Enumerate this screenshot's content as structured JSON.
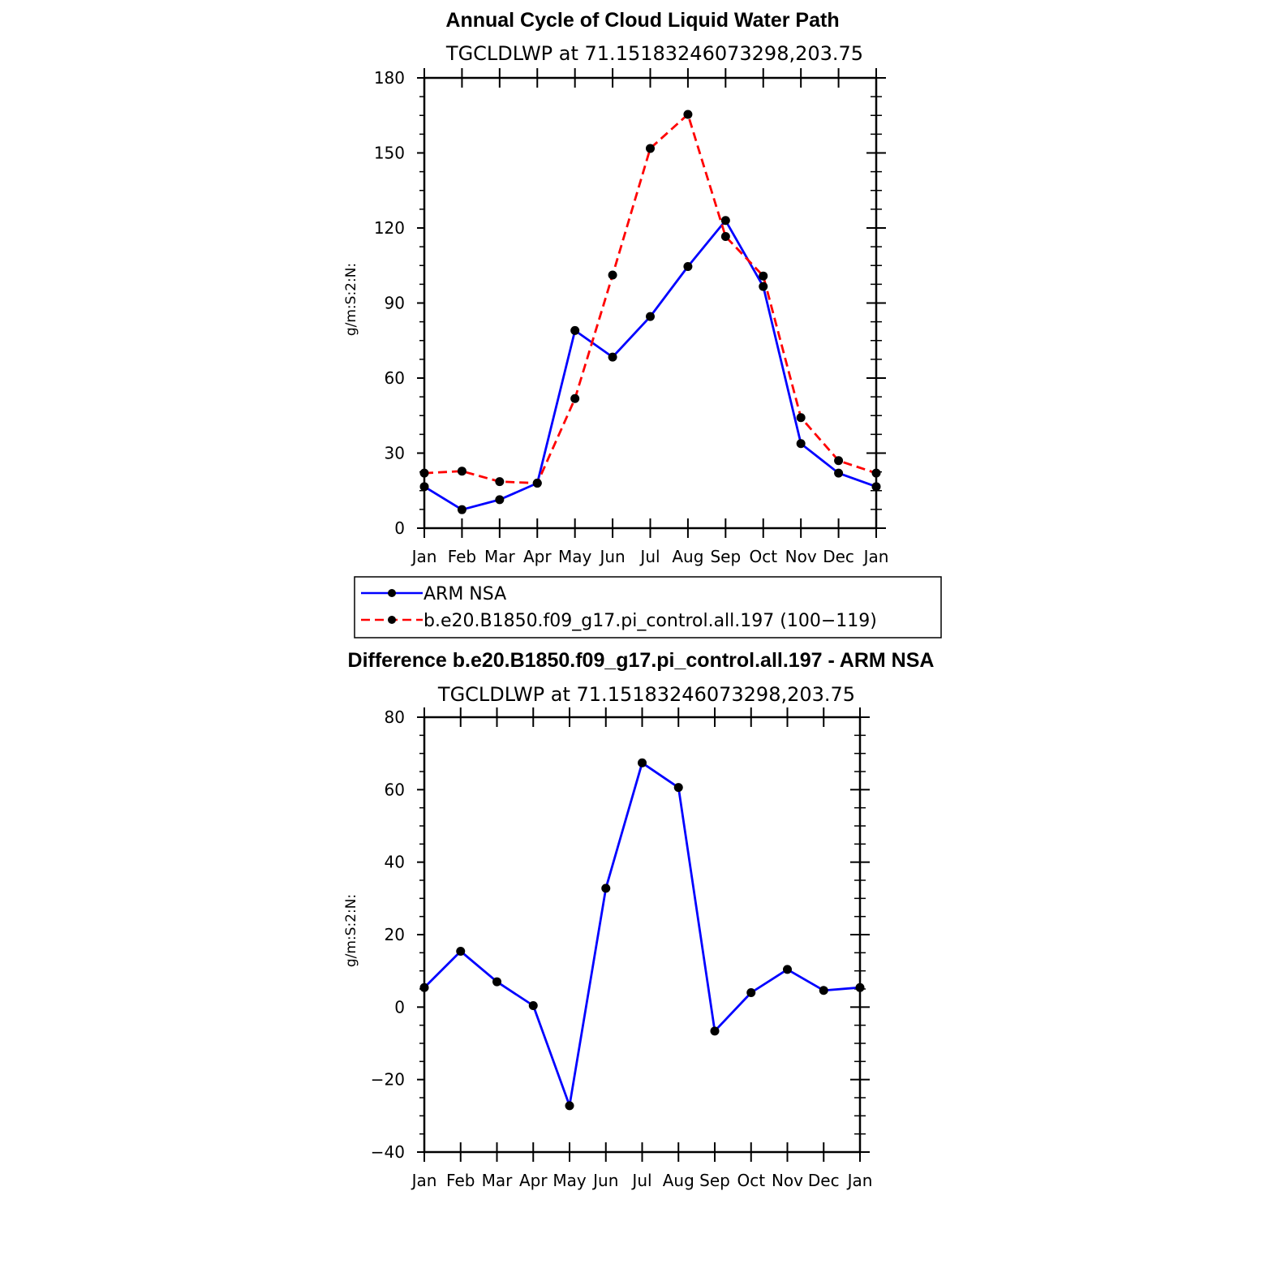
{
  "chart_data": [
    {
      "type": "line",
      "title": "Annual Cycle of Cloud Liquid Water Path",
      "subtitle": "TGCLDLWP  at  71.15183246073298,203.75",
      "ylabel": "g/m:S:2:N:",
      "ylim": [
        0,
        180
      ],
      "yticks": [
        0,
        30,
        60,
        90,
        120,
        150,
        180
      ],
      "categories": [
        "Jan",
        "Feb",
        "Mar",
        "Apr",
        "May",
        "Jun",
        "Jul",
        "Aug",
        "Sep",
        "Oct",
        "Nov",
        "Dec",
        "Jan"
      ],
      "series": [
        {
          "name": "ARM  NSA",
          "color": "#0000ff",
          "dash": "solid",
          "values": [
            16.6,
            7.4,
            11.4,
            18.0,
            79.0,
            68.4,
            84.6,
            104.6,
            123.0,
            96.6,
            33.8,
            22.0,
            16.6
          ]
        },
        {
          "name": "b.e20.B1850.f09_g17.pi_control.all.197 (100−119)",
          "color": "#ff0000",
          "dash": "dashed",
          "values": [
            22.0,
            22.8,
            18.6,
            18.0,
            51.8,
            101.2,
            151.8,
            165.4,
            116.6,
            100.8,
            44.2,
            27.0,
            22.0
          ]
        }
      ],
      "legend": "below"
    },
    {
      "type": "line",
      "title": "Difference b.e20.B1850.f09_g17.pi_control.all.197 - ARM NSA",
      "subtitle": "TGCLDLWP  at  71.15183246073298,203.75",
      "ylabel": "g/m:S:2:N:",
      "ylim": [
        -40,
        80
      ],
      "yticks": [
        -40,
        -20,
        0,
        20,
        40,
        60,
        80
      ],
      "categories": [
        "Jan",
        "Feb",
        "Mar",
        "Apr",
        "May",
        "Jun",
        "Jul",
        "Aug",
        "Sep",
        "Oct",
        "Nov",
        "Dec",
        "Jan"
      ],
      "series": [
        {
          "color": "#0000ff",
          "dash": "solid",
          "values": [
            5.4,
            15.4,
            7.0,
            0.4,
            -27.2,
            32.8,
            67.4,
            60.6,
            -6.6,
            4.0,
            10.4,
            4.6,
            5.4
          ]
        }
      ]
    }
  ]
}
